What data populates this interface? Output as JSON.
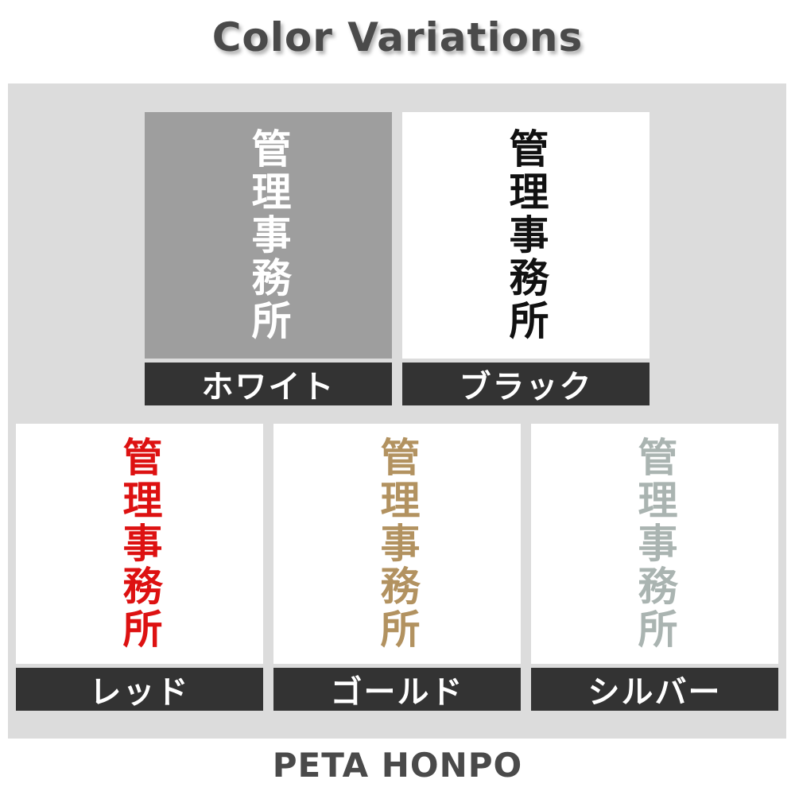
{
  "title": "Color Variations",
  "footer": "PETA HONPO",
  "product_text": "管理事務所",
  "variations": [
    {
      "name": "ホワイト",
      "text_color": "#ffffff",
      "swatch_bg": "#9e9e9e"
    },
    {
      "name": "ブラック",
      "text_color": "#111111",
      "swatch_bg": "#ffffff"
    },
    {
      "name": "レッド",
      "text_color": "#dd1111",
      "swatch_bg": "#ffffff"
    },
    {
      "name": "ゴールド",
      "text_color": "#b29260",
      "swatch_bg": "#ffffff"
    },
    {
      "name": "シルバー",
      "text_color": "#aab4b1",
      "swatch_bg": "#ffffff"
    }
  ],
  "colors": {
    "page_bg": "#ffffff",
    "panel_bg": "#dcdcdc",
    "label_bar_bg": "#333333",
    "heading_text": "#4a4a4a"
  }
}
